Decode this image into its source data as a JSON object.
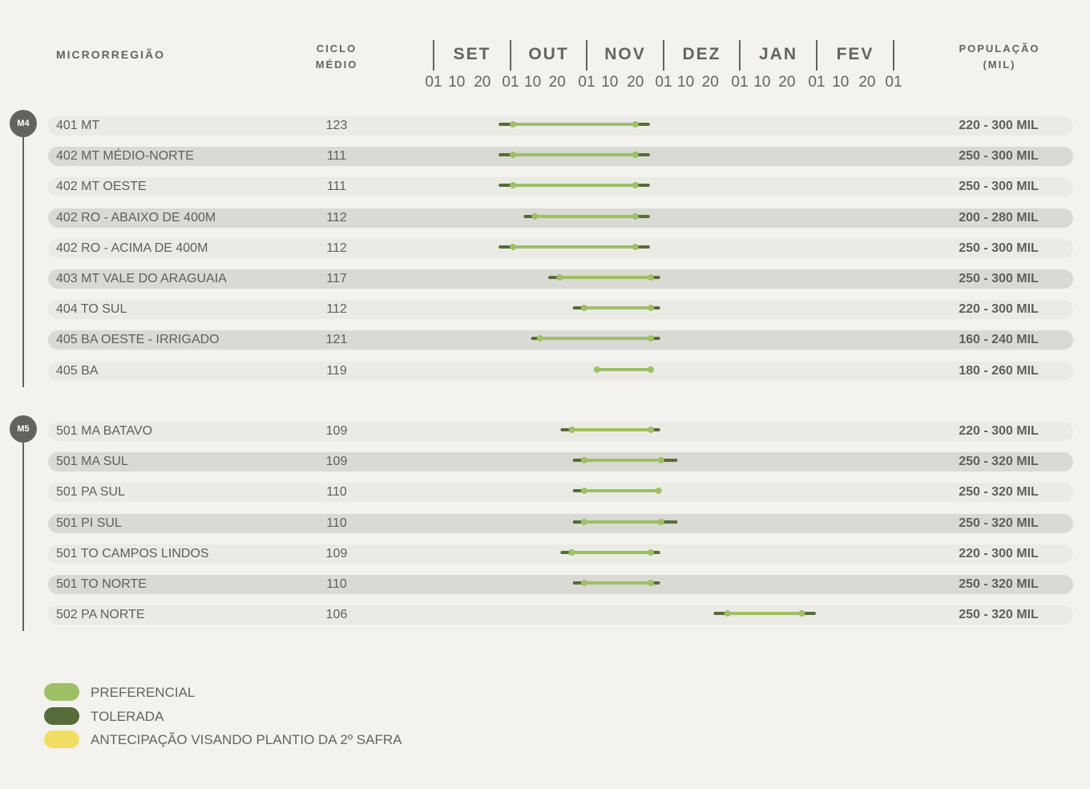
{
  "header": {
    "region": "MICRORREGIÃO",
    "cycle_line1": "CICLO",
    "cycle_line2": "MÉDIO",
    "pop_line1": "POPULAÇÃO",
    "pop_line2": "(MIL)"
  },
  "colors": {
    "preferencial": "#9ebf66",
    "tolerada": "#586b3a",
    "antecipacao": "#f2dd63"
  },
  "chart_data": {
    "type": "gantt",
    "months": [
      "SET",
      "OUT",
      "NOV",
      "DEZ",
      "JAN",
      "FEV"
    ],
    "day_ticks": [
      "01",
      "10",
      "20",
      "01",
      "10",
      "20",
      "01",
      "10",
      "20",
      "01",
      "10",
      "20",
      "01",
      "10",
      "20",
      "01",
      "10",
      "20",
      "01"
    ],
    "groups": [
      {
        "label": "M4",
        "rows": [
          {
            "region": "401 MT",
            "cycle": "123",
            "population": "220 - 300 MIL",
            "tolerada": [
              "2023-09-27",
              "2023-11-25"
            ],
            "preferencial": [
              "2023-10-02",
              "2023-11-20"
            ]
          },
          {
            "region": "402 MT MÉDIO-NORTE",
            "cycle": "111",
            "population": "250 - 300 MIL",
            "tolerada": [
              "2023-09-27",
              "2023-11-25"
            ],
            "preferencial": [
              "2023-10-02",
              "2023-11-20"
            ]
          },
          {
            "region": "402 MT OESTE",
            "cycle": "111",
            "population": "250 - 300 MIL",
            "tolerada": [
              "2023-09-27",
              "2023-11-25"
            ],
            "preferencial": [
              "2023-10-02",
              "2023-11-20"
            ]
          },
          {
            "region": "402 RO - ABAIXO DE 400M",
            "cycle": "112",
            "population": "200 - 280 MIL",
            "tolerada": [
              "2023-10-07",
              "2023-11-25"
            ],
            "preferencial": [
              "2023-10-11",
              "2023-11-20"
            ]
          },
          {
            "region": "402 RO - ACIMA DE 400M",
            "cycle": "112",
            "population": "250 - 300 MIL",
            "tolerada": [
              "2023-09-27",
              "2023-11-25"
            ],
            "preferencial": [
              "2023-10-02",
              "2023-11-20"
            ]
          },
          {
            "region": "403 MT VALE DO ARAGUAIA",
            "cycle": "117",
            "population": "250 - 300 MIL",
            "tolerada": [
              "2023-10-17",
              "2023-11-29"
            ],
            "preferencial": [
              "2023-10-21",
              "2023-11-26"
            ]
          },
          {
            "region": "404 TO SUL",
            "cycle": "112",
            "population": "220 - 300 MIL",
            "tolerada": [
              "2023-10-27",
              "2023-11-29"
            ],
            "preferencial": [
              "2023-10-31",
              "2023-11-26"
            ]
          },
          {
            "region": "405 BA OESTE - IRRIGADO",
            "cycle": "121",
            "population": "160 - 240 MIL",
            "tolerada": [
              "2023-10-10",
              "2023-11-29"
            ],
            "preferencial": [
              "2023-10-13",
              "2023-11-26"
            ]
          },
          {
            "region": "405 BA",
            "cycle": "119",
            "population": "180 - 260 MIL",
            "tolerada": null,
            "preferencial": [
              "2023-11-05",
              "2023-11-26"
            ]
          }
        ]
      },
      {
        "label": "M5",
        "rows": [
          {
            "region": "501 MA BATAVO",
            "cycle": "109",
            "population": "220 - 300 MIL",
            "tolerada": [
              "2023-10-22",
              "2023-11-29"
            ],
            "preferencial": [
              "2023-10-26",
              "2023-11-26"
            ]
          },
          {
            "region": "501 MA SUL",
            "cycle": "109",
            "population": "250 - 320 MIL",
            "tolerada": [
              "2023-10-27",
              "2023-12-06"
            ],
            "preferencial": [
              "2023-10-31",
              "2023-11-30"
            ]
          },
          {
            "region": "501 PA SUL",
            "cycle": "110",
            "population": "250 - 320 MIL",
            "tolerada": [
              "2023-10-27",
              "2023-11-26"
            ],
            "preferencial": [
              "2023-10-31",
              "2023-11-29"
            ]
          },
          {
            "region": "501 PI SUL",
            "cycle": "110",
            "population": "250 - 320 MIL",
            "tolerada": [
              "2023-10-27",
              "2023-12-06"
            ],
            "preferencial": [
              "2023-10-31",
              "2023-11-30"
            ]
          },
          {
            "region": "501 TO CAMPOS LINDOS",
            "cycle": "109",
            "population": "220 - 300 MIL",
            "tolerada": [
              "2023-10-22",
              "2023-11-29"
            ],
            "preferencial": [
              "2023-10-26",
              "2023-11-26"
            ]
          },
          {
            "region": "501 TO NORTE",
            "cycle": "110",
            "population": "250 - 320 MIL",
            "tolerada": [
              "2023-10-27",
              "2023-11-29"
            ],
            "preferencial": [
              "2023-10-31",
              "2023-11-26"
            ]
          },
          {
            "region": "502 PA NORTE",
            "cycle": "106",
            "population": "250 - 320 MIL",
            "tolerada": [
              "2023-12-22",
              "2024-01-31"
            ],
            "preferencial": [
              "2023-12-27",
              "2024-01-26"
            ]
          }
        ]
      }
    ]
  },
  "legend": [
    {
      "key": "preferencial",
      "label": "PREFERENCIAL"
    },
    {
      "key": "tolerada",
      "label": "TOLERADA"
    },
    {
      "key": "antecipacao",
      "label": "ANTECIPAÇÃO VISANDO PLANTIO DA 2º SAFRA"
    }
  ]
}
